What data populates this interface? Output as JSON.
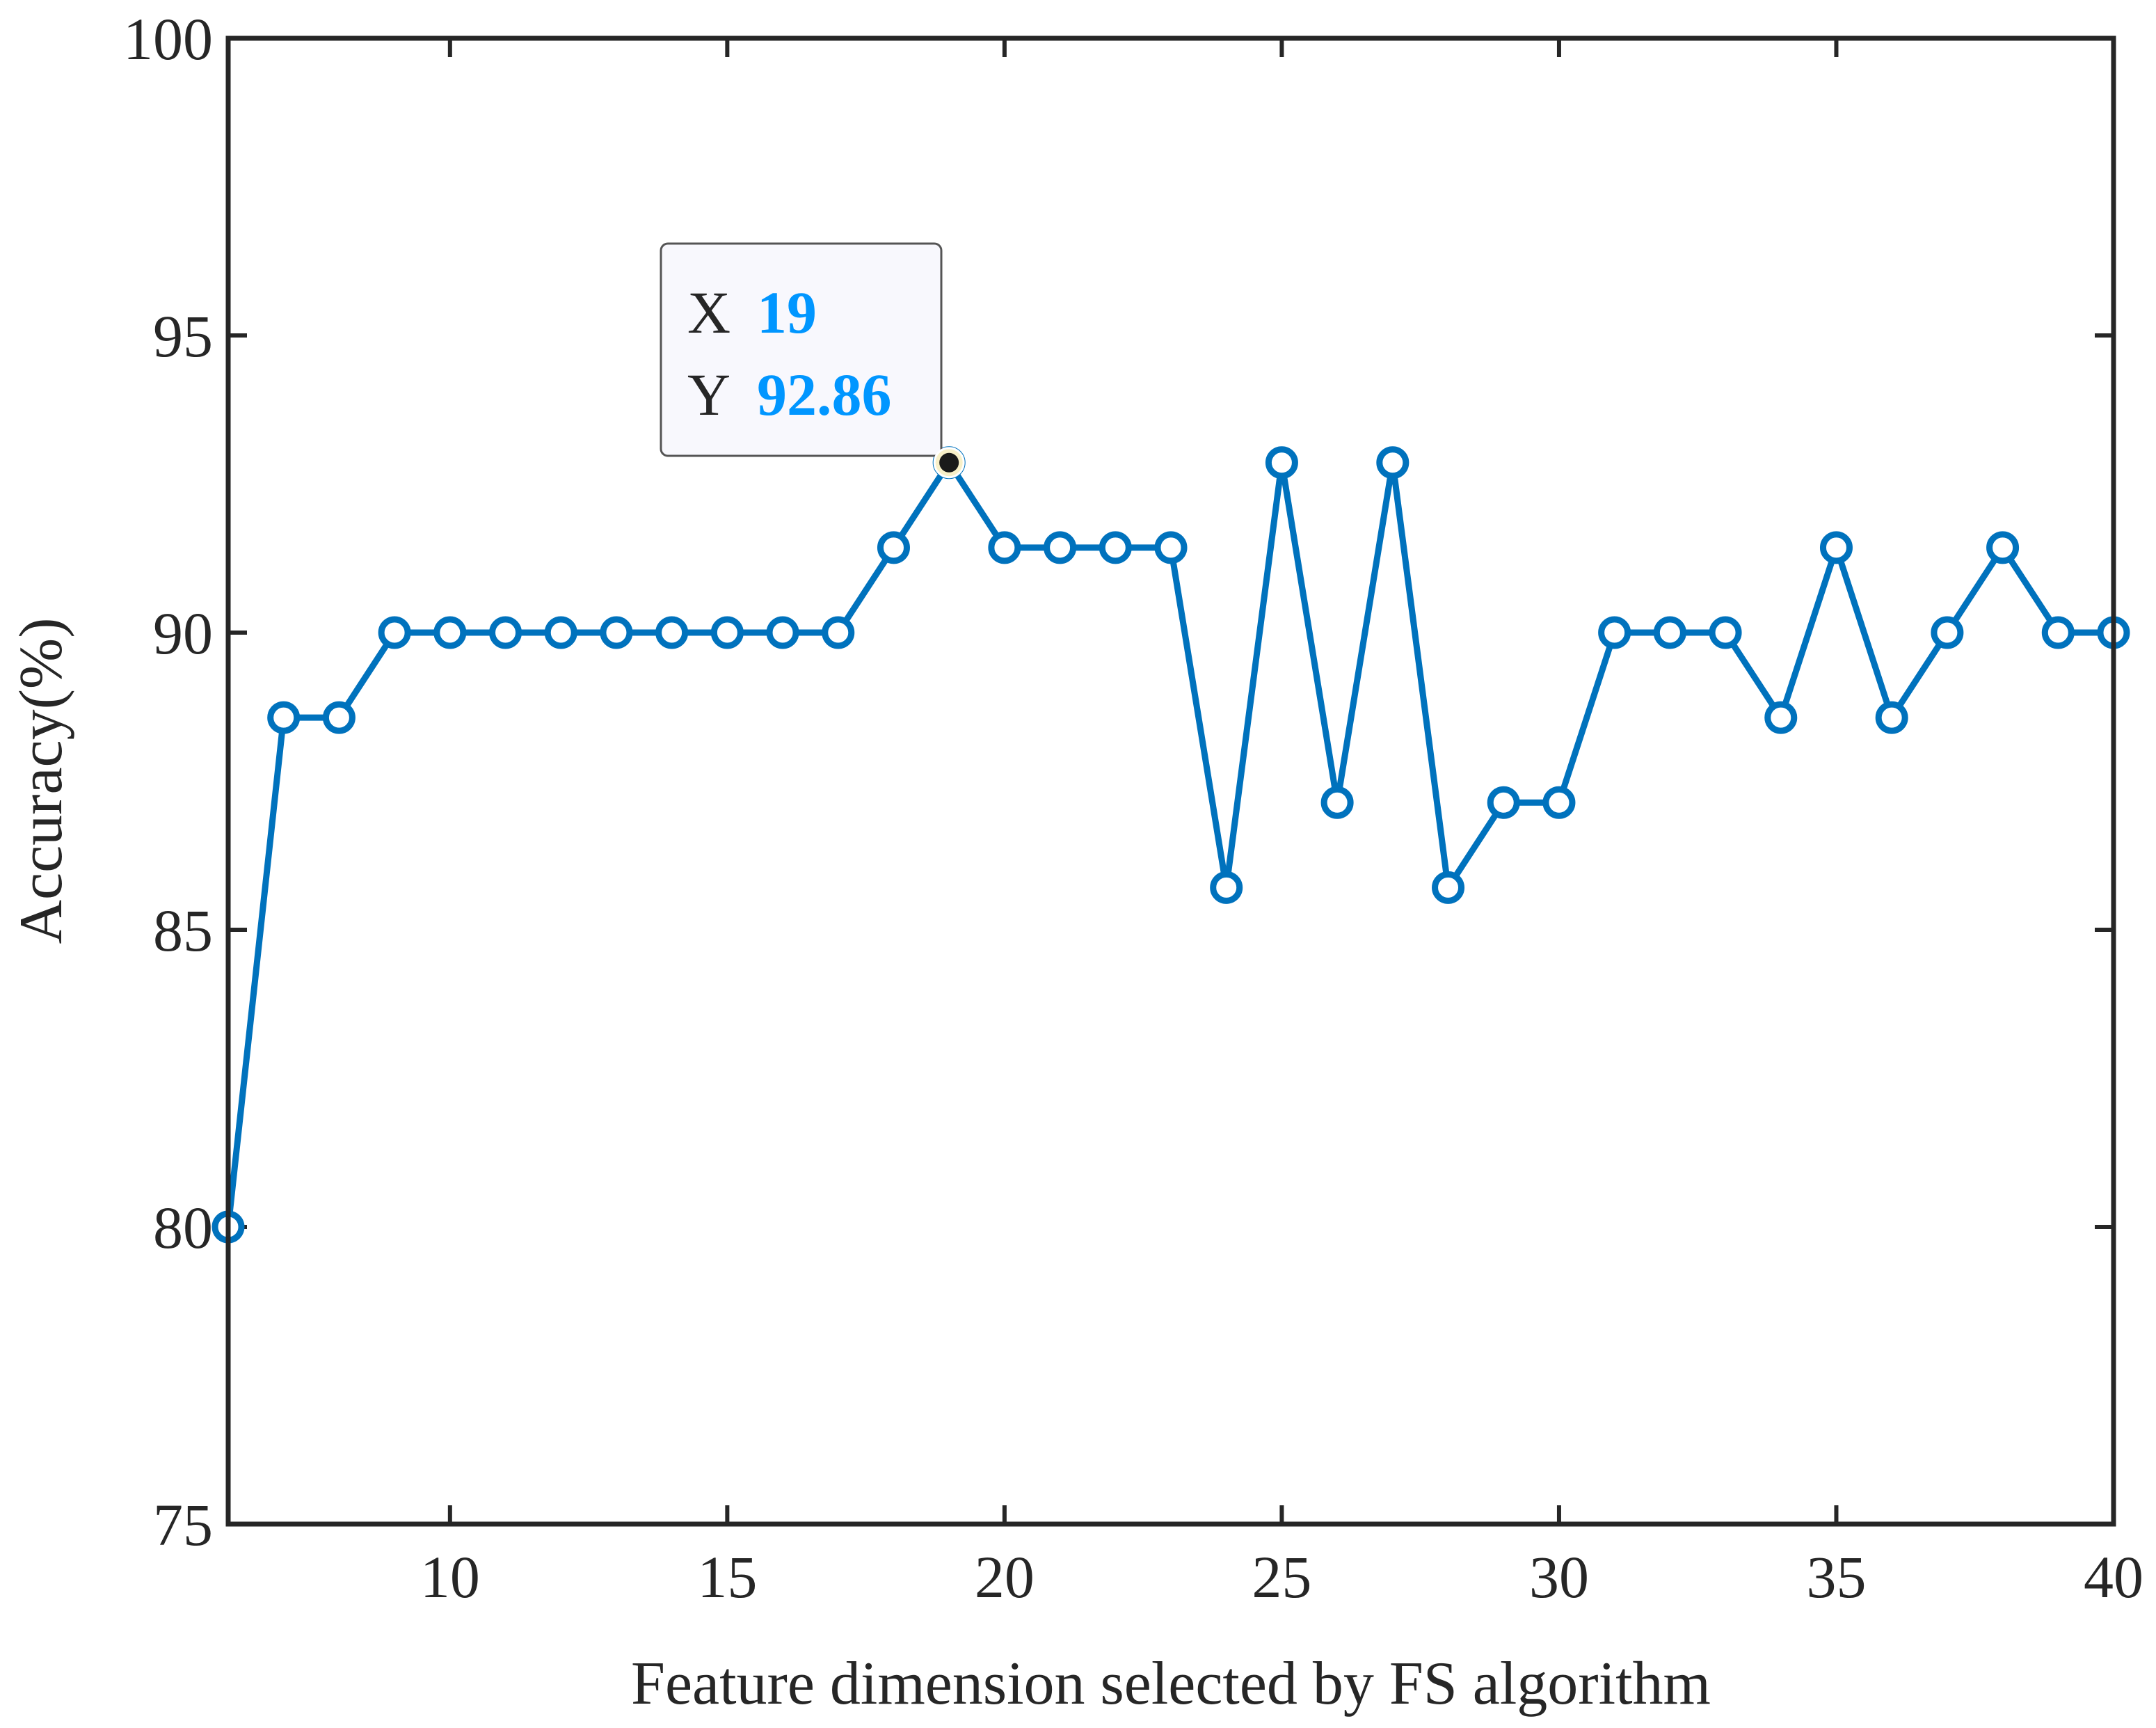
{
  "chart_data": {
    "type": "line",
    "title": "",
    "xlabel": "Feature dimension selected by FS algorithm",
    "ylabel": "Accuracy(%)",
    "xlim": [
      6,
      40
    ],
    "ylim": [
      75,
      100
    ],
    "xticks": [
      10,
      15,
      20,
      25,
      30,
      35,
      40
    ],
    "yticks": [
      75,
      80,
      85,
      90,
      95,
      100
    ],
    "grid": false,
    "marker": "circle",
    "series": [
      {
        "color": "#0072BD",
        "x": [
          6,
          7,
          8,
          9,
          10,
          11,
          12,
          13,
          14,
          15,
          16,
          17,
          18,
          19,
          20,
          21,
          22,
          23,
          24,
          25,
          26,
          27,
          28,
          29,
          30,
          31,
          32,
          33,
          34,
          35,
          36,
          37,
          38,
          39,
          40
        ],
        "y": [
          80,
          88.57,
          88.57,
          90,
          90,
          90,
          90,
          90,
          90,
          90,
          90,
          90,
          91.43,
          92.86,
          91.43,
          91.43,
          91.43,
          91.43,
          85.71,
          92.86,
          87.14,
          92.86,
          85.71,
          87.14,
          87.14,
          90,
          90,
          90,
          88.57,
          91.43,
          88.57,
          90,
          91.43,
          90,
          90
        ]
      }
    ],
    "datatip": {
      "x_key": "X",
      "x_value": "19",
      "y_key": "Y",
      "y_value": "92.86",
      "value_color": "#0096FF"
    }
  }
}
